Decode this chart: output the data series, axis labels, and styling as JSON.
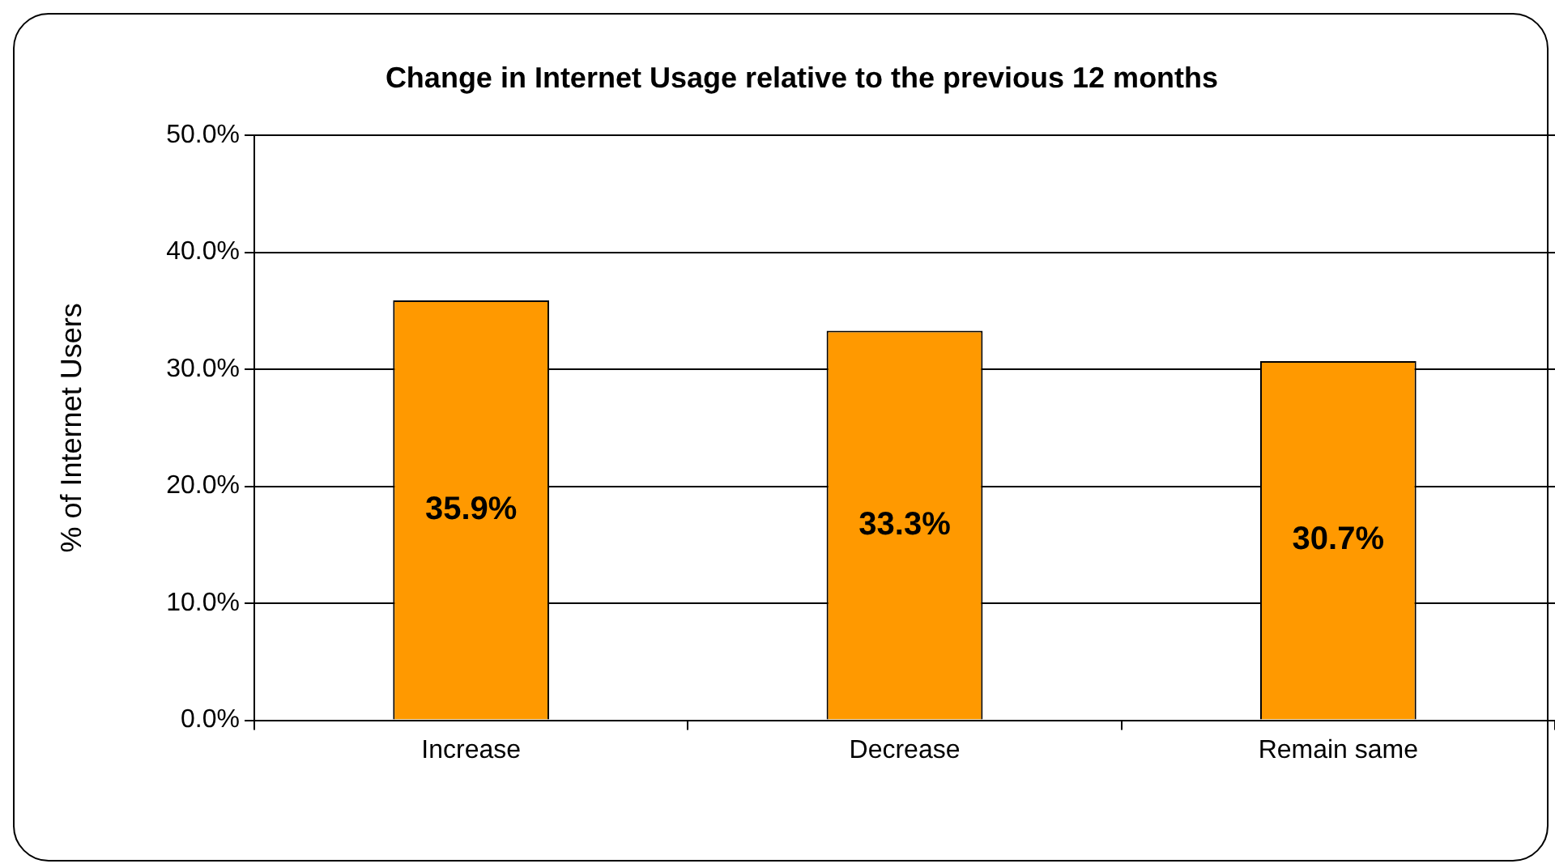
{
  "chart_data": {
    "type": "bar",
    "title": "Change in Internet Usage relative to the previous 12 months",
    "ylabel": "% of Internet Users",
    "categories": [
      "Increase",
      "Decrease",
      "Remain same"
    ],
    "values": [
      35.9,
      33.3,
      30.7
    ],
    "color": "#ff9900",
    "value_labels": [
      "35.9%",
      "33.3%",
      "30.7%"
    ],
    "ylim": [
      0,
      50
    ],
    "yticks": [
      {
        "value": 0,
        "label": "0.0%"
      },
      {
        "value": 10,
        "label": "10.0%"
      },
      {
        "value": 20,
        "label": "20.0%"
      },
      {
        "value": 30,
        "label": "30.0%"
      },
      {
        "value": 40,
        "label": "40.0%"
      },
      {
        "value": 50,
        "label": "50.0%"
      }
    ],
    "grid": "y",
    "legend": false
  }
}
